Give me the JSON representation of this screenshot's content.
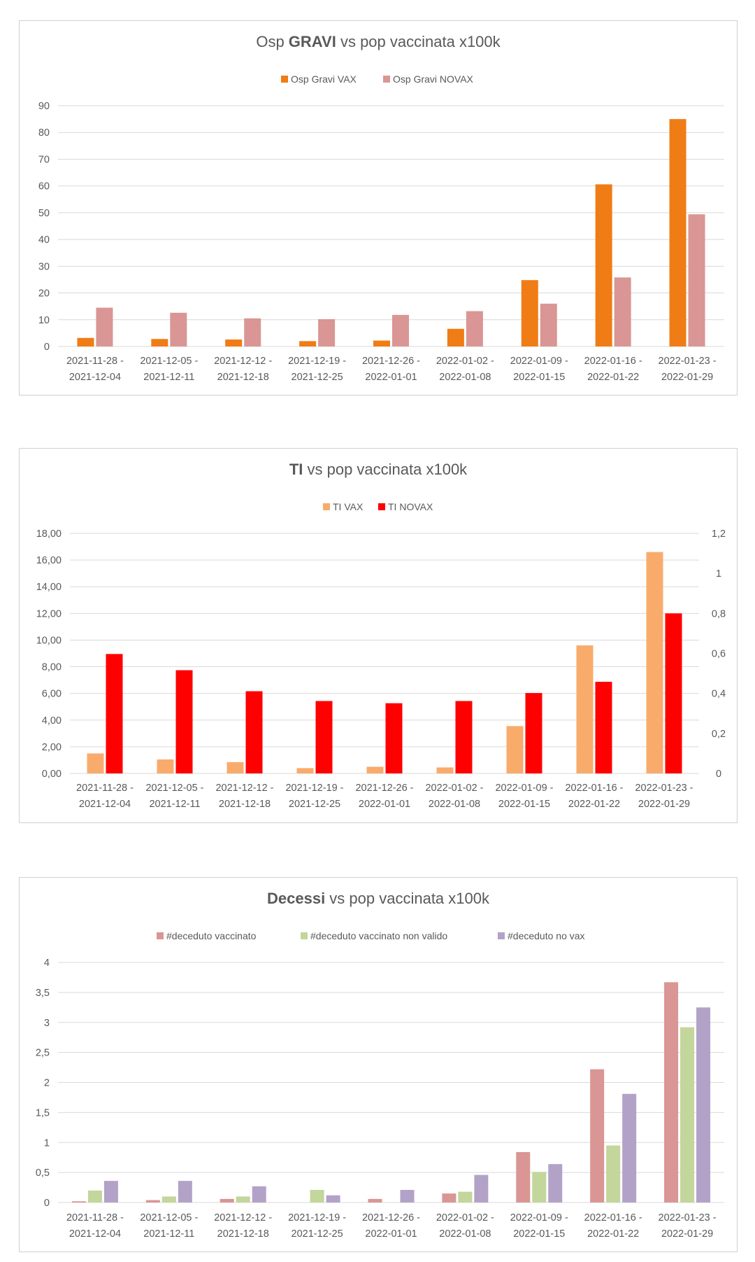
{
  "chart_data": [
    {
      "type": "bar",
      "title_parts": [
        "Osp ",
        "GRAVI",
        " vs pop vaccinata x100k"
      ],
      "categories": [
        [
          "2021-11-28 -",
          "2021-12-04"
        ],
        [
          "2021-12-05 -",
          "2021-12-11"
        ],
        [
          "2021-12-12 -",
          "2021-12-18"
        ],
        [
          "2021-12-19 -",
          "2021-12-25"
        ],
        [
          "2021-12-26 -",
          "2022-01-01"
        ],
        [
          "2022-01-02 -",
          "2022-01-08"
        ],
        [
          "2022-01-09 -",
          "2022-01-15"
        ],
        [
          "2022-01-16 -",
          "2022-01-22"
        ],
        [
          "2022-01-23 -",
          "2022-01-29"
        ]
      ],
      "series": [
        {
          "name": "Osp Gravi VAX",
          "color": "#f07c16",
          "axis": "left",
          "values": [
            3.2,
            2.8,
            2.6,
            2.0,
            2.2,
            6.6,
            24.8,
            60.6,
            85.0
          ]
        },
        {
          "name": "Osp Gravi NOVAX",
          "color": "#d99694",
          "axis": "left",
          "values": [
            14.5,
            12.6,
            10.5,
            10.2,
            11.8,
            13.2,
            16.0,
            25.8,
            49.4
          ]
        }
      ],
      "ylim": [
        0,
        90
      ],
      "yticks": [
        "0",
        "10",
        "20",
        "30",
        "40",
        "50",
        "60",
        "70",
        "80",
        "90"
      ],
      "legend_position": "top"
    },
    {
      "type": "bar",
      "title_parts": [
        "",
        "TI",
        " vs pop vaccinata x100k"
      ],
      "categories": [
        [
          "2021-11-28 -",
          "2021-12-04"
        ],
        [
          "2021-12-05 -",
          "2021-12-11"
        ],
        [
          "2021-12-12 -",
          "2021-12-18"
        ],
        [
          "2021-12-19 -",
          "2021-12-25"
        ],
        [
          "2021-12-26 -",
          "2022-01-01"
        ],
        [
          "2022-01-02 -",
          "2022-01-08"
        ],
        [
          "2022-01-09 -",
          "2022-01-15"
        ],
        [
          "2022-01-16 -",
          "2022-01-22"
        ],
        [
          "2022-01-23 -",
          "2022-01-29"
        ]
      ],
      "series": [
        {
          "name": "TI VAX",
          "color": "#f9ab6c",
          "axis": "left",
          "values": [
            1.5,
            1.05,
            0.85,
            0.4,
            0.5,
            0.45,
            3.55,
            9.6,
            16.6
          ]
        },
        {
          "name": "TI NOVAX",
          "color": "#ff0000",
          "axis": "right",
          "values": [
            0.597,
            0.516,
            0.411,
            0.362,
            0.351,
            0.362,
            0.402,
            0.458,
            0.8
          ]
        }
      ],
      "ylim": [
        0,
        18
      ],
      "yticks": [
        "0,00",
        "2,00",
        "4,00",
        "6,00",
        "8,00",
        "10,00",
        "12,00",
        "14,00",
        "16,00",
        "18,00"
      ],
      "y2lim": [
        0,
        1.2
      ],
      "y2ticks": [
        "0",
        "0,2",
        "0,4",
        "0,6",
        "0,8",
        "1",
        "1,2"
      ],
      "legend_position": "top"
    },
    {
      "type": "bar",
      "title_parts": [
        "",
        "Decessi",
        " vs pop vaccinata x100k"
      ],
      "categories": [
        [
          "2021-11-28 -",
          "2021-12-04"
        ],
        [
          "2021-12-05 -",
          "2021-12-11"
        ],
        [
          "2021-12-12 -",
          "2021-12-18"
        ],
        [
          "2021-12-19 -",
          "2021-12-25"
        ],
        [
          "2021-12-26 -",
          "2022-01-01"
        ],
        [
          "2022-01-02 -",
          "2022-01-08"
        ],
        [
          "2022-01-09 -",
          "2022-01-15"
        ],
        [
          "2022-01-16 -",
          "2022-01-22"
        ],
        [
          "2022-01-23 -",
          "2022-01-29"
        ]
      ],
      "series": [
        {
          "name": "#deceduto vaccinato",
          "color": "#d99694",
          "axis": "left",
          "values": [
            0.02,
            0.04,
            0.06,
            0.0,
            0.06,
            0.15,
            0.84,
            2.22,
            3.67
          ]
        },
        {
          "name": "#deceduto vaccinato non valido",
          "color": "#c3d69b",
          "axis": "left",
          "values": [
            0.2,
            0.1,
            0.1,
            0.21,
            0.0,
            0.18,
            0.51,
            0.95,
            2.92
          ]
        },
        {
          "name": "#deceduto no vax",
          "color": "#b3a2c7",
          "axis": "left",
          "values": [
            0.36,
            0.36,
            0.27,
            0.12,
            0.21,
            0.46,
            0.64,
            1.81,
            3.25
          ]
        }
      ],
      "ylim": [
        0,
        4
      ],
      "yticks": [
        "0",
        "0,5",
        "1",
        "1,5",
        "2",
        "2,5",
        "3",
        "3,5",
        "4"
      ],
      "legend_position": "top"
    }
  ]
}
